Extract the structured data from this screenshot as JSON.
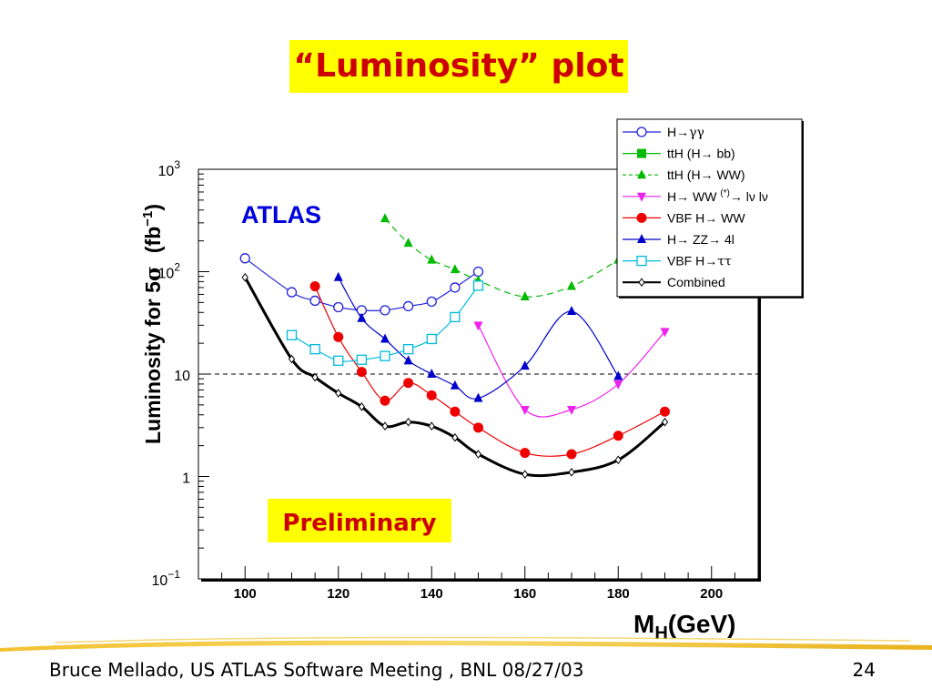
{
  "slide": {
    "title": "“Luminosity” plot",
    "footer_left": "Bruce Mellado, US ATLAS Software Meeting , BNL 08/27/03",
    "page_number": "24"
  },
  "chart_data": {
    "type": "line",
    "xlabel_main": "M",
    "xlabel_sub": "H",
    "xlabel_unit": "(GeV)",
    "ylabel_main": "Luminosity for 5",
    "ylabel_sigma": "σ",
    "ylabel_unit": "(fb",
    "ylabel_exp": "−1",
    "ylabel_close": ")",
    "xlim": [
      90,
      210
    ],
    "ylim": [
      0.1,
      1000
    ],
    "yscale": "log",
    "xticks": [
      "100",
      "120",
      "140",
      "160",
      "180",
      "200"
    ],
    "yticks": [
      {
        "value": 1000,
        "base": "10",
        "exp": "3"
      },
      {
        "value": 100,
        "base": "10",
        "exp": "2"
      },
      {
        "value": 10,
        "base": "10",
        "exp": ""
      },
      {
        "value": 1,
        "base": "1",
        "exp": ""
      },
      {
        "value": 0.1,
        "base": "10",
        "exp": "−1"
      }
    ],
    "reference_line": 10,
    "annotations": {
      "experiment": "ATLAS",
      "status": "Preliminary"
    },
    "legend_position": "top-right",
    "series": [
      {
        "name_pre": "H→",
        "name_greek": "γγ",
        "name_sup": "",
        "name_post": "",
        "color": "#2222dd",
        "marker": "circle-open",
        "dash": "",
        "x": [
          100,
          110,
          115,
          120,
          125,
          130,
          135,
          140,
          145,
          150
        ],
        "y": [
          135,
          63,
          52,
          45,
          42,
          42,
          46,
          51,
          70,
          100
        ]
      },
      {
        "name_pre": "ttH (H→ bb)",
        "name_greek": "",
        "name_sup": "",
        "name_post": "",
        "color": "#00bb00",
        "marker": "square-filled",
        "dash": "",
        "x": [],
        "y": []
      },
      {
        "name_pre": "ttH (H→ WW)",
        "name_greek": "",
        "name_sup": "",
        "name_post": "",
        "color": "#00bb00",
        "marker": "triangle-up-filled",
        "dash": "7,5",
        "x": [
          130,
          135,
          140,
          145,
          150,
          160,
          170,
          180
        ],
        "y": [
          330,
          190,
          130,
          105,
          82,
          57,
          72,
          130
        ]
      },
      {
        "name_pre": "H→ WW ",
        "name_greek": "",
        "name_sup": "(*)",
        "name_post": "→ lν lν",
        "color": "#ee22ee",
        "marker": "triangle-down-filled",
        "dash": "",
        "x": [
          150,
          160,
          170,
          180,
          190
        ],
        "y": [
          30,
          4.5,
          4.5,
          8,
          26
        ]
      },
      {
        "name_pre": "VBF H→ WW",
        "name_greek": "",
        "name_sup": "",
        "name_post": "",
        "color": "#ee0000",
        "marker": "circle-filled",
        "dash": "",
        "x": [
          115,
          120,
          125,
          130,
          135,
          140,
          145,
          150,
          160,
          170,
          180,
          190
        ],
        "y": [
          72,
          23,
          10.5,
          5.5,
          8.2,
          6.2,
          4.3,
          3.0,
          1.7,
          1.65,
          2.5,
          4.3
        ]
      },
      {
        "name_pre": "H→ ZZ→ 4l",
        "name_greek": "",
        "name_sup": "",
        "name_post": "",
        "color": "#0000cc",
        "marker": "triangle-up-filled",
        "dash": "",
        "x": [
          120,
          125,
          130,
          135,
          140,
          145,
          150,
          160,
          170,
          180
        ],
        "y": [
          88,
          35,
          22,
          13.5,
          10,
          7.7,
          5.8,
          12,
          41,
          9.5
        ]
      },
      {
        "name_pre": "VBF H→",
        "name_greek": "ττ",
        "name_sup": "",
        "name_post": "",
        "color": "#00bbdd",
        "marker": "square-open",
        "dash": "",
        "x": [
          110,
          115,
          120,
          125,
          130,
          135,
          140,
          145,
          150
        ],
        "y": [
          24,
          17.5,
          13.5,
          13.8,
          15,
          17.5,
          22,
          36,
          73
        ]
      },
      {
        "name_pre": "Combined",
        "name_greek": "",
        "name_sup": "",
        "name_post": "",
        "color": "#000000",
        "marker": "diamond-open",
        "dash": "",
        "x": [
          100,
          110,
          115,
          120,
          125,
          130,
          135,
          140,
          145,
          150,
          160,
          170,
          180,
          190
        ],
        "y": [
          88,
          14,
          9.3,
          6.5,
          4.8,
          3.1,
          3.4,
          3.1,
          2.4,
          1.65,
          1.05,
          1.1,
          1.45,
          3.4
        ]
      }
    ]
  }
}
